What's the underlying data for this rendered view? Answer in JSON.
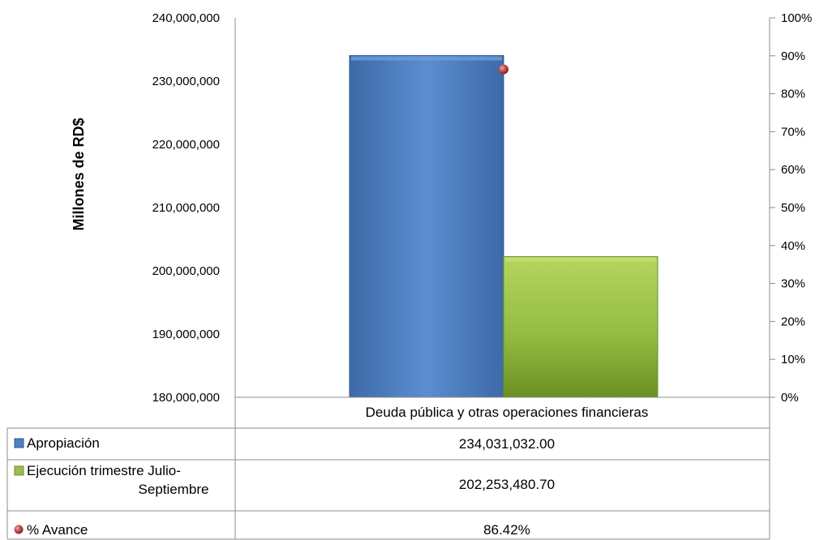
{
  "chart_data": {
    "type": "bar",
    "title": "",
    "ylabel": "Millones de RD$",
    "category": "Deuda pública y otras operaciones financieras",
    "ylim": [
      180000000,
      240000000
    ],
    "y_ticks": [
      "240,000,000",
      "230,000,000",
      "220,000,000",
      "210,000,000",
      "200,000,000",
      "190,000,000",
      "180,000,000"
    ],
    "y2lim": [
      0,
      100
    ],
    "y2_ticks": [
      "100%",
      "90%",
      "80%",
      "70%",
      "60%",
      "50%",
      "40%",
      "30%",
      "20%",
      "10%",
      "0%"
    ],
    "legend_placement": "data-table",
    "series": [
      {
        "name": "Apropiación",
        "value": 234031032.0,
        "color": "#4f81bd",
        "marker": "square"
      },
      {
        "name": "Ejecución trimestre Julio-Septiembre",
        "name_lines": [
          "Ejecución trimestre Julio-",
          "Septiembre"
        ],
        "value": 202253480.7,
        "color": "#9bbb59",
        "marker": "square"
      },
      {
        "name": "% Avance",
        "value": 86.42,
        "axis": "secondary",
        "color": "#c0504d",
        "marker": "circle"
      }
    ],
    "table_values": [
      "234,031,032.00",
      "202,253,480.70",
      "86.42%"
    ]
  }
}
